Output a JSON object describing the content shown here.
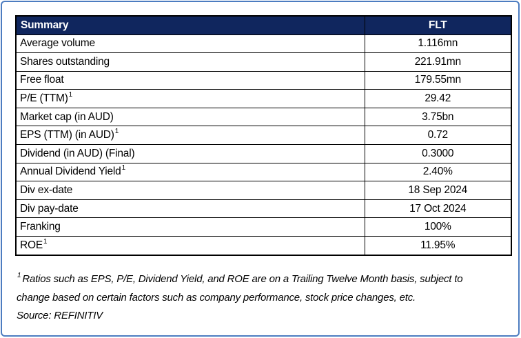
{
  "frame": {
    "border_color": "#4c7cc0"
  },
  "table": {
    "header_bg": "#10265e",
    "header": {
      "label": "Summary",
      "value": "FLT"
    },
    "rows": [
      {
        "label": "Average volume",
        "sup": "",
        "value": "1.116mn"
      },
      {
        "label": "Shares outstanding",
        "sup": "",
        "value": "221.91mn"
      },
      {
        "label": "Free float",
        "sup": "",
        "value": "179.55mn"
      },
      {
        "label": "P/E (TTM)",
        "sup": "1",
        "value": "29.42"
      },
      {
        "label": "Market cap (in AUD)",
        "sup": "",
        "value": "3.75bn"
      },
      {
        "label": "EPS (TTM) (in AUD)",
        "sup": "1",
        "value": "0.72"
      },
      {
        "label": "Dividend (in AUD) (Final)",
        "sup": "",
        "value": "0.3000"
      },
      {
        "label": "Annual Dividend Yield",
        "sup": "1",
        "value": "2.40%"
      },
      {
        "label": "Div ex-date",
        "sup": "",
        "value": "18 Sep 2024"
      },
      {
        "label": "Div pay-date",
        "sup": "",
        "value": "17 Oct 2024"
      },
      {
        "label": "Franking",
        "sup": "",
        "value": "100%"
      },
      {
        "label": "ROE",
        "sup": "1",
        "value": "11.95%"
      }
    ]
  },
  "footnote": {
    "sup": "1",
    "lines": [
      "Ratios such as EPS, P/E, Dividend Yield, and ROE are on a Trailing Twelve Month basis, subject to",
      "change based on certain factors such as company performance, stock price changes, etc."
    ],
    "source": "Source: REFINITIV"
  }
}
